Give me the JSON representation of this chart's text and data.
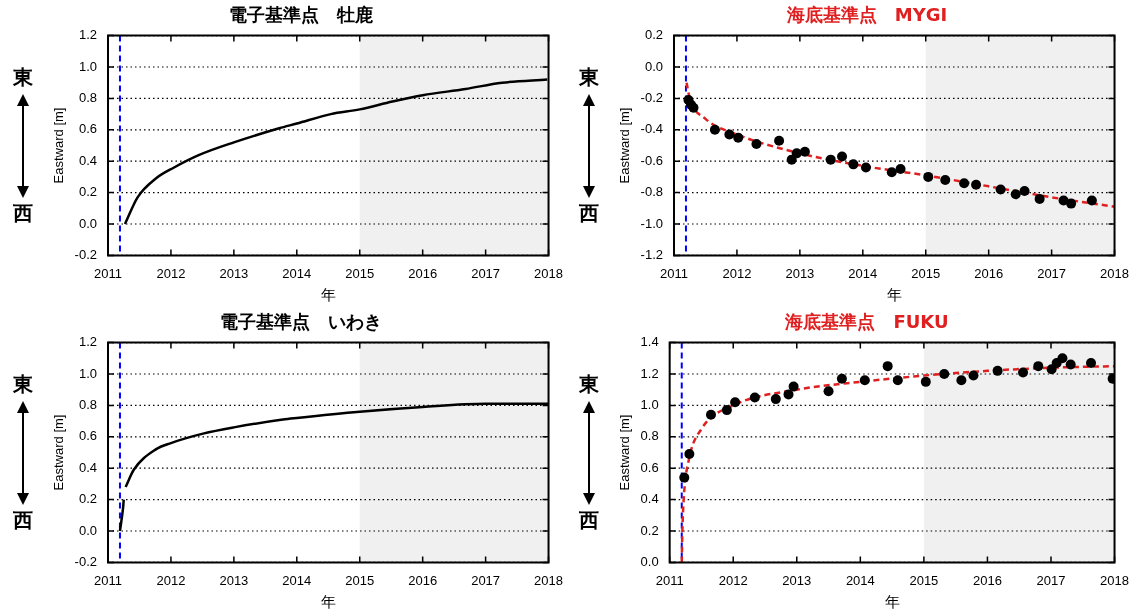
{
  "chart_data": [
    {
      "type": "line",
      "title": "電子基準点　牡鹿",
      "xlabel": "年",
      "ylabel": "Eastward [m]",
      "annotations": [
        "東",
        "西"
      ],
      "xlim": [
        2011,
        2018
      ],
      "xticks": [
        2011,
        2012,
        2013,
        2014,
        2015,
        2016,
        2017,
        2018
      ],
      "ylim": [
        -0.2,
        1.2
      ],
      "yticks": [
        -0.2,
        {
          "value": 0,
          "label": "0.0"
        },
        0.2,
        0.4,
        0.6,
        0.8,
        {
          "value": 1,
          "label": "1.0"
        },
        1.2
      ],
      "grid": "y",
      "legend": false,
      "marker": "none",
      "bands": [
        {
          "axis": "x",
          "from": 2015,
          "to": 2018,
          "color": "#f0f0f0"
        }
      ],
      "ref_lines": [
        {
          "axis": "x",
          "value": 2011.19,
          "color": "#0000ff",
          "line_style": "dashed"
        }
      ],
      "series": [
        {
          "color": "#000000",
          "x": [
            2011.27,
            2011.47,
            2011.76,
            2012.05,
            2012.45,
            2013.0,
            2013.72,
            2014.0,
            2014.54,
            2015.0,
            2015.52,
            2016.0,
            2016.68,
            2017.26,
            2017.98
          ],
          "values": [
            0.0,
            0.17,
            0.29,
            0.36,
            0.44,
            0.52,
            0.61,
            0.64,
            0.7,
            0.73,
            0.78,
            0.82,
            0.86,
            0.9,
            0.92
          ]
        }
      ]
    },
    {
      "type": "scatter",
      "title": "海底基準点　MYGI",
      "xlabel": "年",
      "ylabel": "Eastward [m]",
      "annotations": [
        "東",
        "西"
      ],
      "xlim": [
        2011,
        2018
      ],
      "xticks": [
        2011,
        2012,
        2013,
        2014,
        2015,
        2016,
        2017,
        2018
      ],
      "ylim": [
        -1.2,
        0.2
      ],
      "yticks": [
        -1.2,
        {
          "value": -1,
          "label": "-1.0"
        },
        -0.8,
        -0.6,
        -0.4,
        -0.2,
        {
          "value": 0,
          "label": "0.0"
        },
        0.2
      ],
      "grid": "y",
      "legend": false,
      "marker": "circle",
      "bands": [
        {
          "axis": "x",
          "from": 2015,
          "to": 2018,
          "color": "#f0f0f0"
        }
      ],
      "ref_lines": [
        {
          "axis": "x",
          "value": 2011.19,
          "color": "#0000ff",
          "line_style": "dashed"
        }
      ],
      "series": [
        {
          "color": "#000000",
          "x": [
            2011.23,
            2011.27,
            2011.31,
            2011.65,
            2011.88,
            2012.02,
            2012.31,
            2012.67,
            2012.87,
            2012.95,
            2013.08,
            2013.49,
            2013.67,
            2013.85,
            2014.05,
            2014.46,
            2014.6,
            2015.04,
            2015.31,
            2015.61,
            2015.8,
            2016.19,
            2016.43,
            2016.57,
            2016.81,
            2017.19,
            2017.31,
            2017.64
          ],
          "values": [
            -0.21,
            -0.24,
            -0.26,
            -0.4,
            -0.43,
            -0.45,
            -0.49,
            -0.47,
            -0.59,
            -0.55,
            -0.54,
            -0.59,
            -0.57,
            -0.62,
            -0.64,
            -0.67,
            -0.65,
            -0.7,
            -0.72,
            -0.74,
            -0.75,
            -0.78,
            -0.81,
            -0.79,
            -0.84,
            -0.85,
            -0.87,
            -0.85
          ]
        },
        {
          "type": "line",
          "color": "#e02020",
          "line_style": "dashed",
          "marker": "none",
          "x": [
            2011.2,
            2011.25,
            2011.5,
            2012,
            2013,
            2014,
            2015,
            2016,
            2017,
            2018
          ],
          "values": [
            -0.1,
            -0.2,
            -0.33,
            -0.43,
            -0.55,
            -0.63,
            -0.69,
            -0.76,
            -0.83,
            -0.89
          ]
        }
      ]
    },
    {
      "type": "line",
      "title": "電子基準点　いわき",
      "xlabel": "年",
      "ylabel": "Eastward [m]",
      "annotations": [
        "東",
        "西"
      ],
      "xlim": [
        2011,
        2018
      ],
      "xticks": [
        2011,
        2012,
        2013,
        2014,
        2015,
        2016,
        2017,
        2018
      ],
      "ylim": [
        -0.2,
        1.2
      ],
      "yticks": [
        -0.2,
        {
          "value": 0,
          "label": "0.0"
        },
        0.2,
        0.4,
        0.6,
        0.8,
        {
          "value": 1,
          "label": "1.0"
        },
        1.2
      ],
      "grid": "y",
      "legend": false,
      "marker": "none",
      "bands": [
        {
          "axis": "x",
          "from": 2015,
          "to": 2018,
          "color": "#f0f0f0"
        }
      ],
      "ref_lines": [
        {
          "axis": "x",
          "value": 2011.19,
          "color": "#0000ff",
          "line_style": "dashed"
        }
      ],
      "series": [
        {
          "color": "#000000",
          "x": [
            2011.19,
            2011.24,
            2011.25,
            2011.26,
            2011.28,
            2011.41,
            2011.76,
            2012.0,
            2012.51,
            2013.0,
            2013.78,
            2014.0,
            2015.0,
            2016.0,
            2017.0,
            2018.0
          ],
          "values": [
            0.0,
            0.15,
            0.2,
            null,
            0.28,
            0.39,
            0.52,
            0.56,
            0.62,
            0.66,
            0.71,
            0.72,
            0.76,
            0.79,
            0.81,
            0.81
          ]
        }
      ]
    },
    {
      "type": "scatter",
      "title": "海底基準点　FUKU",
      "xlabel": "年",
      "ylabel": "Eastward [m]",
      "annotations": [
        "東",
        "西"
      ],
      "xlim": [
        2011,
        2018
      ],
      "xticks": [
        2011,
        2012,
        2013,
        2014,
        2015,
        2016,
        2017,
        2018
      ],
      "ylim": [
        0,
        1.4
      ],
      "yticks": [
        {
          "value": 0,
          "label": "0.0"
        },
        0.2,
        0.4,
        0.6,
        0.8,
        {
          "value": 1,
          "label": "1.0"
        },
        1.2,
        1.4
      ],
      "grid": "y",
      "legend": false,
      "marker": "circle",
      "bands": [
        {
          "axis": "x",
          "from": 2015,
          "to": 2018,
          "color": "#f0f0f0"
        }
      ],
      "ref_lines": [
        {
          "axis": "x",
          "value": 2011.19,
          "color": "#0000ff",
          "line_style": "dashed"
        }
      ],
      "series": [
        {
          "color": "#000000",
          "x": [
            2011.23,
            2011.31,
            2011.65,
            2011.9,
            2012.03,
            2012.34,
            2012.67,
            2012.87,
            2012.95,
            2013.5,
            2013.71,
            2014.07,
            2014.43,
            2014.59,
            2015.03,
            2015.32,
            2015.59,
            2015.78,
            2016.16,
            2016.56,
            2016.8,
            2017.01,
            2017.09,
            2017.18,
            2017.31,
            2017.63,
            2017.97
          ],
          "values": [
            0.54,
            0.69,
            0.94,
            0.97,
            1.02,
            1.05,
            1.04,
            1.07,
            1.12,
            1.09,
            1.17,
            1.16,
            1.25,
            1.16,
            1.15,
            1.2,
            1.16,
            1.19,
            1.22,
            1.21,
            1.25,
            1.23,
            1.27,
            1.3,
            1.26,
            1.27,
            1.17
          ]
        },
        {
          "type": "line",
          "color": "#e02020",
          "line_style": "dashed",
          "marker": "none",
          "x": [
            2011.19,
            2011.2,
            2011.22,
            2011.3,
            2011.5,
            2012,
            2013,
            2014,
            2015,
            2016,
            2017,
            2018
          ],
          "values": [
            0.0,
            0.2,
            0.4,
            0.65,
            0.85,
            1.0,
            1.1,
            1.15,
            1.19,
            1.22,
            1.24,
            1.25
          ]
        }
      ]
    }
  ]
}
